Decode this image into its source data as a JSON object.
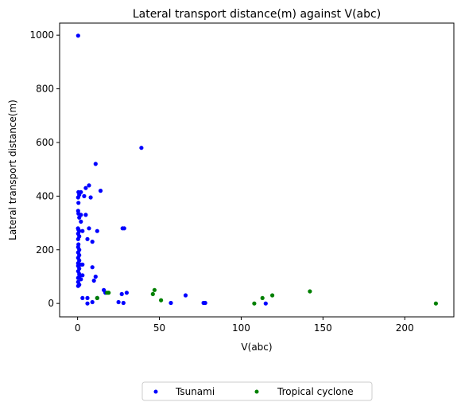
{
  "chart_data": {
    "type": "scatter",
    "title": "Lateral transport distance(m) against V(abc)",
    "xlabel": "V(abc)",
    "ylabel": "Lateral transport distance(m)",
    "xlim": [
      -11,
      230
    ],
    "ylim": [
      -50,
      1045
    ],
    "xticks": [
      0,
      50,
      100,
      150,
      200
    ],
    "yticks": [
      0,
      200,
      400,
      600,
      800,
      1000
    ],
    "grid": false,
    "legend_position": "bottom-center",
    "series": [
      {
        "name": "Tsunami",
        "color": "#0000ff",
        "points": [
          [
            0.3,
            998
          ],
          [
            39,
            580
          ],
          [
            11,
            520
          ],
          [
            14,
            420
          ],
          [
            7,
            440
          ],
          [
            5,
            430
          ],
          [
            0.5,
            415
          ],
          [
            2,
            415
          ],
          [
            1,
            405
          ],
          [
            4,
            400
          ],
          [
            8,
            395
          ],
          [
            0.3,
            395
          ],
          [
            0.5,
            375
          ],
          [
            0.3,
            345
          ],
          [
            0.5,
            335
          ],
          [
            2,
            330
          ],
          [
            5,
            330
          ],
          [
            1,
            320
          ],
          [
            2,
            305
          ],
          [
            0.2,
            280
          ],
          [
            0.5,
            275
          ],
          [
            1,
            270
          ],
          [
            3,
            270
          ],
          [
            7,
            280
          ],
          [
            12,
            270
          ],
          [
            27.5,
            280
          ],
          [
            28.5,
            280
          ],
          [
            0.3,
            260
          ],
          [
            1,
            250
          ],
          [
            0.3,
            240
          ],
          [
            6,
            240
          ],
          [
            9,
            230
          ],
          [
            0.5,
            220
          ],
          [
            0.3,
            210
          ],
          [
            1,
            200
          ],
          [
            0.3,
            190
          ],
          [
            1,
            180
          ],
          [
            0.3,
            170
          ],
          [
            1,
            160
          ],
          [
            0.3,
            150
          ],
          [
            2,
            145
          ],
          [
            3,
            145
          ],
          [
            0.3,
            140
          ],
          [
            1,
            130
          ],
          [
            9,
            135
          ],
          [
            0.3,
            120
          ],
          [
            1,
            110
          ],
          [
            3,
            105
          ],
          [
            1,
            100
          ],
          [
            0.3,
            95
          ],
          [
            11,
            100
          ],
          [
            2,
            90
          ],
          [
            10,
            85
          ],
          [
            0.3,
            80
          ],
          [
            1,
            70
          ],
          [
            0.3,
            65
          ],
          [
            16,
            50
          ],
          [
            17,
            40
          ],
          [
            30,
            40
          ],
          [
            27,
            35
          ],
          [
            66,
            30
          ],
          [
            3,
            20
          ],
          [
            6,
            20
          ],
          [
            12,
            20
          ],
          [
            9,
            5
          ],
          [
            25,
            5
          ],
          [
            6,
            0
          ],
          [
            28,
            2
          ],
          [
            57,
            2
          ],
          [
            77,
            2
          ],
          [
            78,
            2
          ],
          [
            115,
            0
          ]
        ]
      },
      {
        "name": "Tropical cyclone",
        "color": "#008000",
        "points": [
          [
            19,
            40
          ],
          [
            18,
            40
          ],
          [
            12,
            20
          ],
          [
            47,
            50
          ],
          [
            46,
            35
          ],
          [
            51,
            12
          ],
          [
            108,
            0
          ],
          [
            113,
            20
          ],
          [
            119,
            30
          ],
          [
            142,
            45
          ],
          [
            219,
            0
          ]
        ]
      }
    ]
  }
}
